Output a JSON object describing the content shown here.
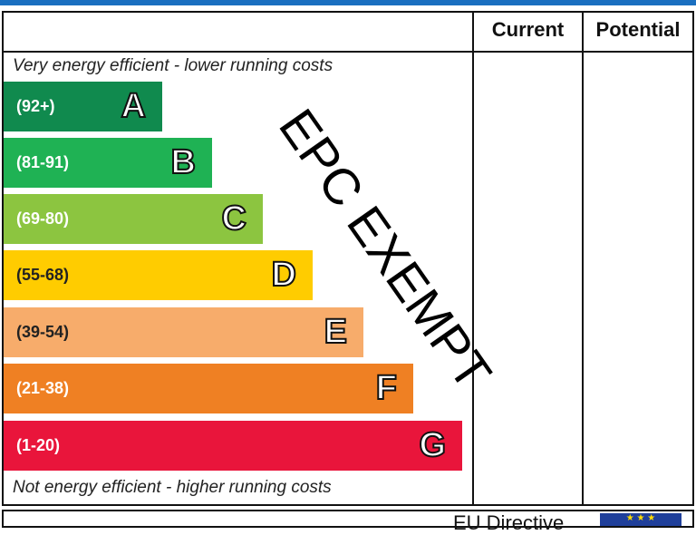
{
  "header": {
    "current": "Current",
    "potential": "Potential"
  },
  "notes": {
    "top": "Very energy efficient - lower running costs",
    "bottom": "Not energy efficient - higher running costs"
  },
  "footer": {
    "text": "EU Directive",
    "flag_icon": "eu-flag-icon"
  },
  "stamp": "EPC EXEMPT",
  "chart_data": {
    "type": "bar",
    "categories": [
      "A",
      "B",
      "C",
      "D",
      "E",
      "F",
      "G"
    ],
    "ranges": [
      "(92+)",
      "(81-91)",
      "(69-80)",
      "(55-68)",
      "(39-54)",
      "(21-38)",
      "(1-20)"
    ],
    "colors": [
      "#108a4e",
      "#1fb254",
      "#8cc540",
      "#ffcc00",
      "#f7ac6b",
      "#ef8023",
      "#e9153b"
    ],
    "current": null,
    "potential": null
  }
}
